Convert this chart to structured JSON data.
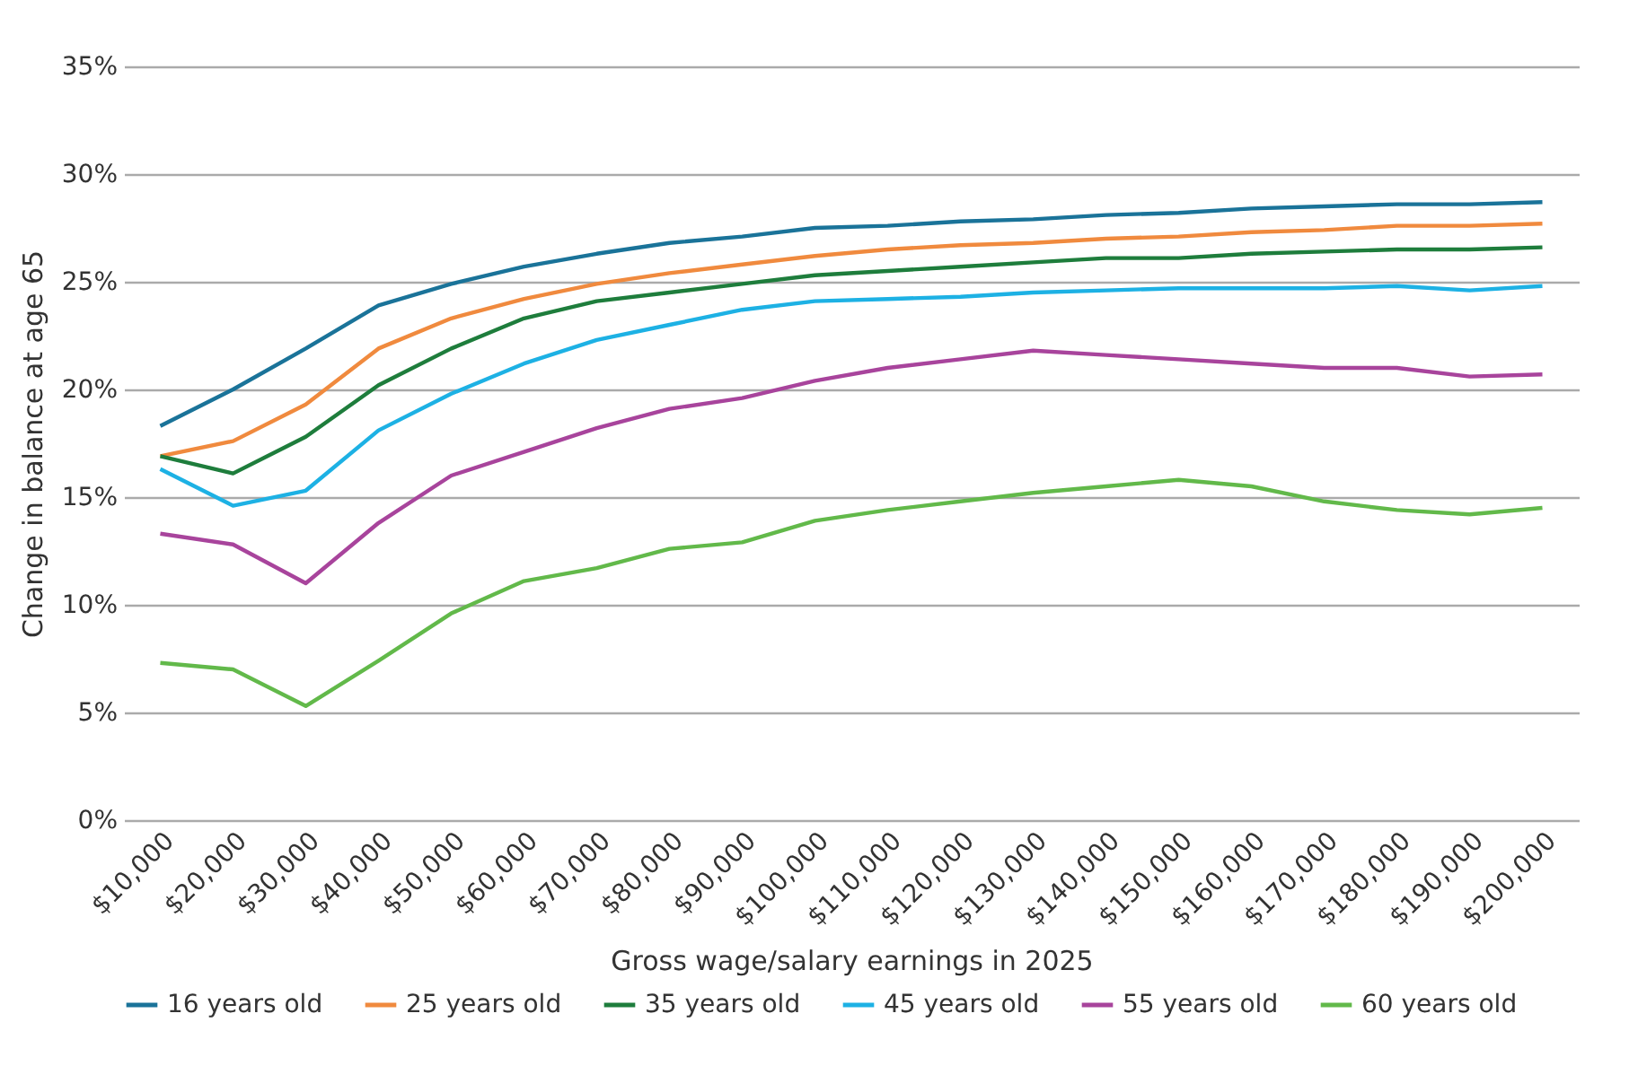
{
  "chart_data": {
    "type": "line",
    "xlabel": "Gross wage/salary earnings in 2025",
    "ylabel": "Change in balance at age 65",
    "categories": [
      "$10,000",
      "$20,000",
      "$30,000",
      "$40,000",
      "$50,000",
      "$60,000",
      "$70,000",
      "$80,000",
      "$90,000",
      "$100,000",
      "$110,000",
      "$120,000",
      "$130,000",
      "$140,000",
      "$150,000",
      "$160,000",
      "$170,000",
      "$180,000",
      "$190,000",
      "$200,000"
    ],
    "series": [
      {
        "name": "16 years old",
        "color": "#1a7399",
        "values": [
          18.3,
          20.0,
          21.9,
          23.9,
          24.9,
          25.7,
          26.3,
          26.8,
          27.1,
          27.5,
          27.6,
          27.8,
          27.9,
          28.1,
          28.2,
          28.4,
          28.5,
          28.6,
          28.6,
          28.7
        ]
      },
      {
        "name": "25 years old",
        "color": "#f08a3e",
        "values": [
          16.9,
          17.6,
          19.3,
          21.9,
          23.3,
          24.2,
          24.9,
          25.4,
          25.8,
          26.2,
          26.5,
          26.7,
          26.8,
          27.0,
          27.1,
          27.3,
          27.4,
          27.6,
          27.6,
          27.7
        ]
      },
      {
        "name": "35 years old",
        "color": "#1e7d3c",
        "values": [
          16.9,
          16.1,
          17.8,
          20.2,
          21.9,
          23.3,
          24.1,
          24.5,
          24.9,
          25.3,
          25.5,
          25.7,
          25.9,
          26.1,
          26.1,
          26.3,
          26.4,
          26.5,
          26.5,
          26.6
        ]
      },
      {
        "name": "45 years old",
        "color": "#1db1e4",
        "values": [
          16.3,
          14.6,
          15.3,
          18.1,
          19.8,
          21.2,
          22.3,
          23.0,
          23.7,
          24.1,
          24.2,
          24.3,
          24.5,
          24.6,
          24.7,
          24.7,
          24.7,
          24.8,
          24.6,
          24.8
        ]
      },
      {
        "name": "55 years old",
        "color": "#a8449c",
        "values": [
          13.3,
          12.8,
          11.0,
          13.8,
          16.0,
          17.1,
          18.2,
          19.1,
          19.6,
          20.4,
          21.0,
          21.4,
          21.8,
          21.6,
          21.4,
          21.2,
          21.0,
          21.0,
          20.6,
          20.7
        ]
      },
      {
        "name": "60 years old",
        "color": "#62b94a",
        "values": [
          7.3,
          7.0,
          5.3,
          7.4,
          9.6,
          11.1,
          11.7,
          12.6,
          12.9,
          13.9,
          14.4,
          14.8,
          15.2,
          15.5,
          15.8,
          15.5,
          14.8,
          14.4,
          14.2,
          14.5
        ]
      }
    ],
    "ylim": [
      0,
      35
    ],
    "yticks": [
      {
        "value": 0,
        "label": "0%"
      },
      {
        "value": 5,
        "label": "5%"
      },
      {
        "value": 10,
        "label": "10%"
      },
      {
        "value": 15,
        "label": "15%"
      },
      {
        "value": 20,
        "label": "20%"
      },
      {
        "value": 25,
        "label": "25%"
      },
      {
        "value": 30,
        "label": "30%"
      },
      {
        "value": 35,
        "label": "35%"
      }
    ],
    "grid": "y",
    "legend": "bottom",
    "line_style": "solid",
    "marker": "none"
  }
}
